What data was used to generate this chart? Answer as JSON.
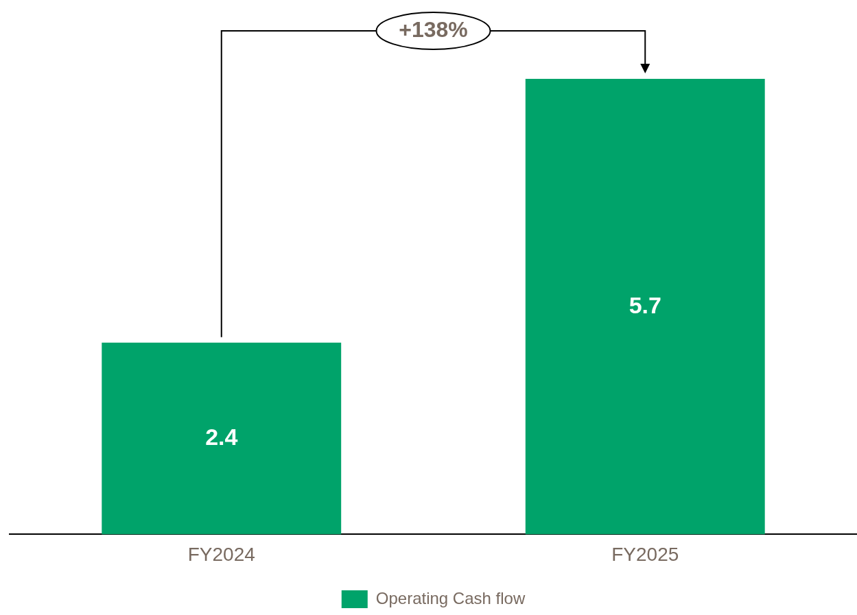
{
  "chart_data": {
    "type": "bar",
    "categories": [
      "FY2024",
      "FY2025"
    ],
    "series": [
      {
        "name": "Operating Cash flow",
        "color": "#00a36a",
        "values": [
          2.4,
          5.7
        ]
      }
    ],
    "data_labels": true,
    "legend": "bottom",
    "grid": false,
    "annotations": [
      "+138%"
    ]
  }
}
